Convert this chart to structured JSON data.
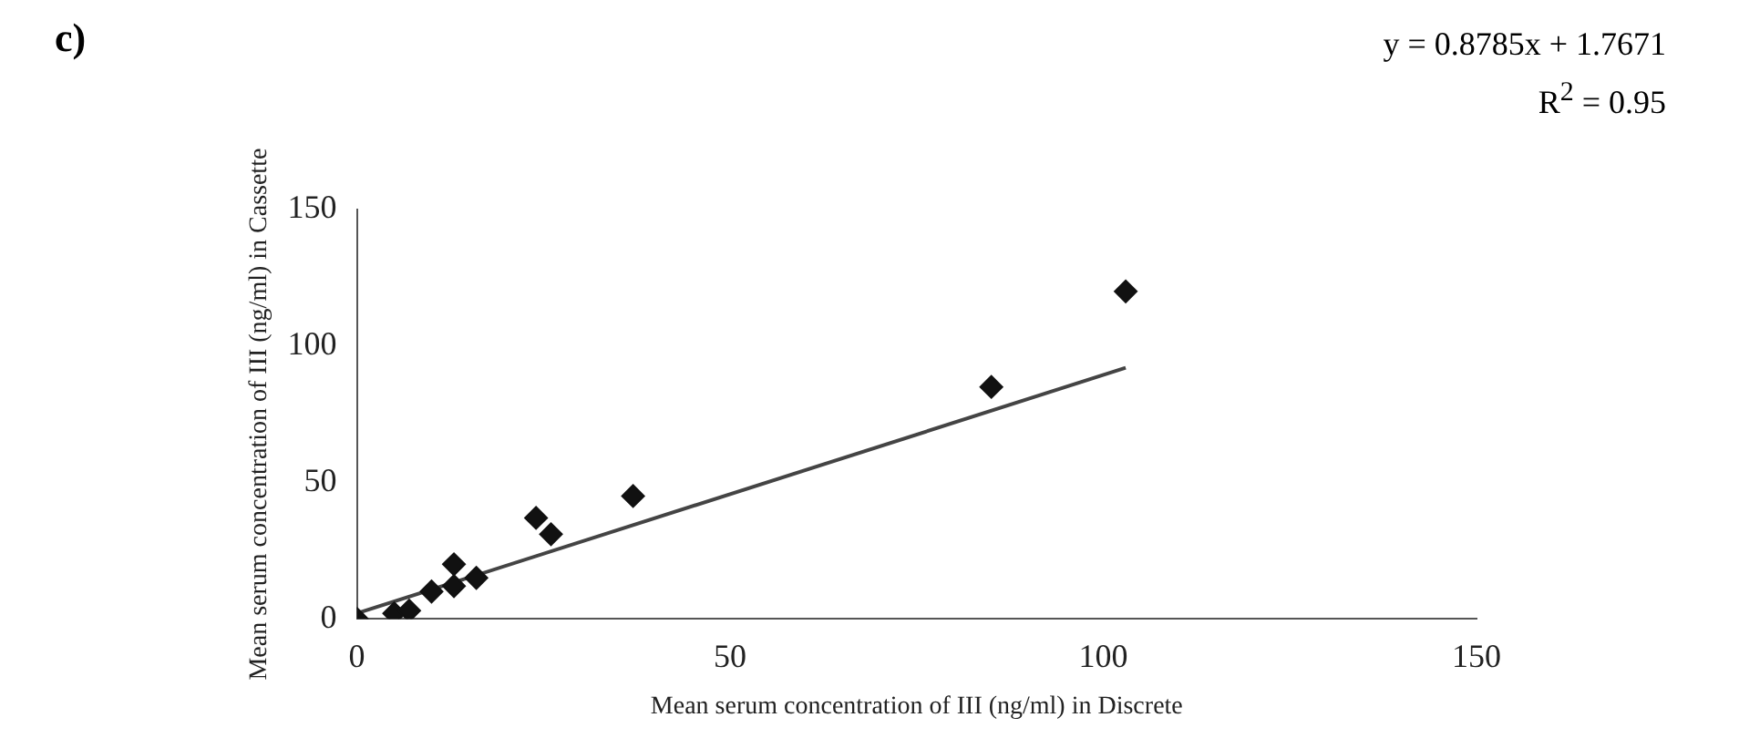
{
  "chart_data": {
    "type": "scatter",
    "title": "c)",
    "xlabel": "Mean serum concentration of III (ng/ml) in Discrete",
    "ylabel": "Mean serum concentration of III (ng/ml) in Cassette",
    "annotations": [
      "y = 0.8785x + 1.7671",
      "R$^{2}$ = 0.95"
    ],
    "series": [
      {
        "type": "scatter",
        "color": "#111111",
        "x": [
          0,
          5,
          7,
          10,
          13,
          13,
          16,
          24,
          26,
          37,
          85,
          103
        ],
        "values": [
          0,
          2,
          3,
          10,
          12,
          20,
          15,
          37,
          31,
          45,
          85,
          120
        ]
      },
      {
        "type": "line",
        "color": "#444444",
        "marker": "none",
        "x": [
          0,
          103
        ],
        "values": [
          2,
          92
        ]
      }
    ],
    "xlim": [
      0,
      150
    ],
    "xticks": [
      0,
      50,
      100,
      150
    ],
    "ylim": [
      0,
      150
    ],
    "yticks": [
      0,
      50,
      100,
      150
    ],
    "grid": false,
    "legend": false,
    "marker": "diamond"
  }
}
